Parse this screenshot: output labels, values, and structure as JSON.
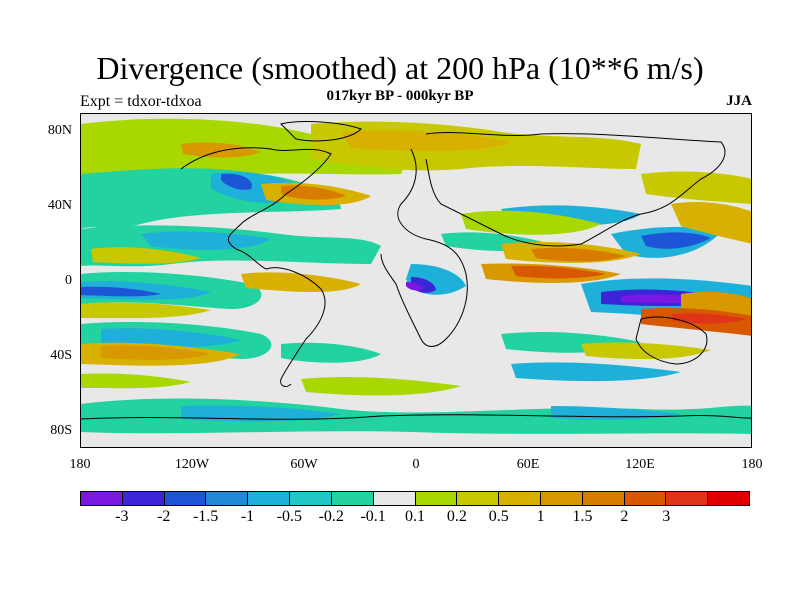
{
  "title": "Divergence (smoothed) at 200 hPa (10**6 m/s)",
  "subtitle": "017kyr BP - 000kyr BP",
  "experiment": "Expt = tdxor-tdxoa",
  "season": "JJA",
  "axes": {
    "lat_labels": [
      "80N",
      "40N",
      "0",
      "40S",
      "80S"
    ],
    "lon_labels": [
      "180",
      "120W",
      "60W",
      "0",
      "60E",
      "120E",
      "180"
    ]
  },
  "colorbar": {
    "colors": [
      "#7a17e0",
      "#3c24d8",
      "#1d55d8",
      "#2288d8",
      "#1eb0d8",
      "#20c8c8",
      "#22d2a0",
      "#e8e8e8",
      "#a8d800",
      "#c8c800",
      "#d8b000",
      "#d89800",
      "#d87c00",
      "#d85800",
      "#e03418",
      "#e00000"
    ],
    "labels": [
      "-3",
      "-2",
      "-1.5",
      "-1",
      "-0.5",
      "-0.2",
      "-0.1",
      "0.1",
      "0.2",
      "0.5",
      "1",
      "1.5",
      "2",
      "3"
    ]
  }
}
